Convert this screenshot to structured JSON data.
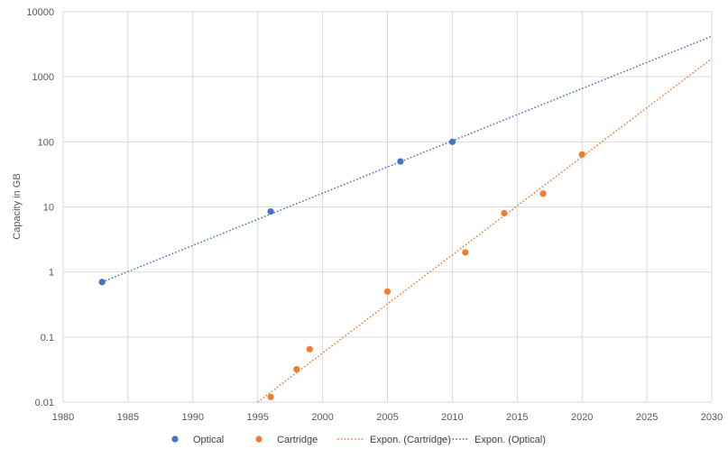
{
  "chart_data": {
    "type": "scatter",
    "title": "",
    "xlabel": "",
    "ylabel": "Capacity in GB",
    "xlim": [
      1980,
      2030
    ],
    "ylim": [
      0.01,
      10000
    ],
    "yscale": "log",
    "grid": true,
    "legend_position": "bottom",
    "x_ticks": [
      "1980",
      "1985",
      "1990",
      "1995",
      "2000",
      "2005",
      "2010",
      "2015",
      "2020",
      "2025",
      "2030"
    ],
    "y_ticks": [
      "0.01",
      "0.1",
      "1",
      "10",
      "100",
      "1000",
      "10000"
    ],
    "series": [
      {
        "name": "Optical",
        "kind": "points",
        "color": "#4472c4",
        "points": [
          [
            1983,
            0.7
          ],
          [
            1996,
            8.5
          ],
          [
            2006,
            50
          ],
          [
            2010,
            100
          ]
        ]
      },
      {
        "name": "Cartridge",
        "kind": "points",
        "color": "#ed7d31",
        "points": [
          [
            1996,
            0.012
          ],
          [
            1998,
            0.032
          ],
          [
            1999,
            0.065
          ],
          [
            2005,
            0.5
          ],
          [
            2011,
            2
          ],
          [
            2014,
            8
          ],
          [
            2017,
            16
          ],
          [
            2020,
            64
          ]
        ]
      },
      {
        "name": "Expon. (Cartridge)",
        "kind": "trendline",
        "color": "#ed7d31",
        "line": [
          [
            1995,
            0.01
          ],
          [
            2030,
            1900
          ]
        ]
      },
      {
        "name": "Expon. (Optical)",
        "kind": "trendline",
        "color": "#4472c4",
        "line": [
          [
            1983,
            0.7
          ],
          [
            2030,
            4200
          ]
        ]
      }
    ]
  }
}
